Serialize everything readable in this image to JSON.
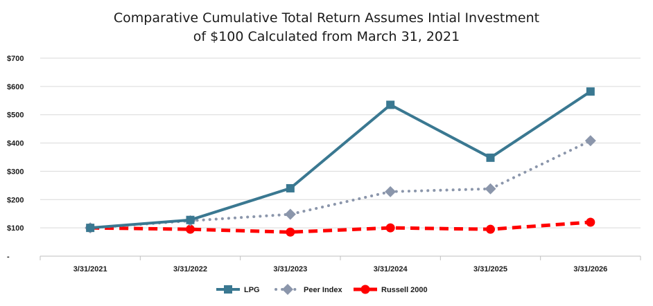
{
  "chart_data": {
    "type": "line",
    "title": "Comparative Cumulative Total Return Assumes Intial Investment",
    "subtitle": "of $100 Calculated from March 31, 2021",
    "xlabel": "",
    "ylabel": "",
    "categories": [
      "3/31/2021",
      "3/31/2022",
      "3/31/2023",
      "3/31/2024",
      "3/31/2025",
      "3/31/2026"
    ],
    "y_ticks": [
      0,
      100,
      200,
      300,
      400,
      500,
      600,
      700
    ],
    "y_tick_labels": [
      "-",
      "$100",
      "$200",
      "$300",
      "$400",
      "$500",
      "$600",
      "$700"
    ],
    "ylim": [
      0,
      700
    ],
    "grid": true,
    "legend_position": "bottom",
    "series": [
      {
        "name": "LPG",
        "values": [
          100,
          128,
          240,
          535,
          348,
          582
        ],
        "color": "#3a7891",
        "style": "solid",
        "marker": "square"
      },
      {
        "name": "Peer Index",
        "values": [
          100,
          125,
          148,
          228,
          238,
          408
        ],
        "color": "#8b96ab",
        "style": "dotted",
        "marker": "diamond"
      },
      {
        "name": "Russell 2000",
        "values": [
          100,
          95,
          85,
          100,
          95,
          120
        ],
        "color": "#ff0000",
        "style": "dashed",
        "marker": "circle"
      }
    ]
  }
}
